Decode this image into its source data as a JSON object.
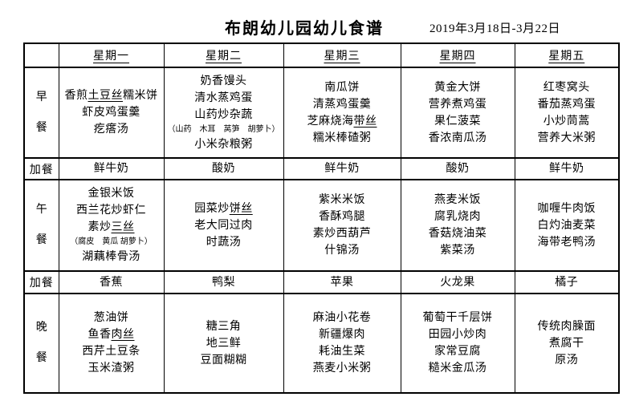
{
  "page": {
    "title": "布朗幼儿园幼儿食谱",
    "date_range": "2019年3月18日-3月22日"
  },
  "table": {
    "corner": "",
    "day_headers": [
      "星期一",
      "星期二",
      "星期三",
      "星期四",
      "星期五"
    ],
    "rows": [
      {
        "label": "早餐",
        "stacked": true,
        "cells": [
          {
            "lines": [
              {
                "text": "香煎土豆丝糯米饼",
                "underline": "土豆丝"
              },
              {
                "text": "虾皮鸡蛋羹"
              },
              {
                "text": "疙瘩汤"
              }
            ]
          },
          {
            "lines": [
              {
                "text": "奶香馒头"
              },
              {
                "text": "清水蒸鸡蛋"
              },
              {
                "text": "山药炒杂蔬"
              },
              {
                "text": "（山药　木耳　莴笋　胡萝卜）",
                "small": true
              },
              {
                "text": "小米杂粮粥"
              }
            ]
          },
          {
            "lines": [
              {
                "text": "南瓜饼"
              },
              {
                "text": "清蒸鸡蛋羹"
              },
              {
                "text": "芝麻烧海带丝",
                "underline": "带丝"
              },
              {
                "text": "糯米棒碴粥"
              }
            ]
          },
          {
            "lines": [
              {
                "text": "黄金大饼"
              },
              {
                "text": "营养煮鸡蛋"
              },
              {
                "text": "果仁菠菜"
              },
              {
                "text": "香浓南瓜汤"
              }
            ]
          },
          {
            "lines": [
              {
                "text": "红枣窝头"
              },
              {
                "text": "番茄蒸鸡蛋"
              },
              {
                "text": "小炒茼蒿"
              },
              {
                "text": "营养大米粥"
              }
            ]
          }
        ]
      },
      {
        "label": "加餐",
        "stacked": false,
        "cells": [
          {
            "lines": [
              {
                "text": "鲜牛奶"
              }
            ]
          },
          {
            "lines": [
              {
                "text": "酸奶"
              }
            ]
          },
          {
            "lines": [
              {
                "text": "鲜牛奶"
              }
            ]
          },
          {
            "lines": [
              {
                "text": "酸奶"
              }
            ]
          },
          {
            "lines": [
              {
                "text": "鲜牛奶"
              }
            ]
          }
        ]
      },
      {
        "label": "午餐",
        "stacked": true,
        "cells": [
          {
            "lines": [
              {
                "text": "金银米饭"
              },
              {
                "text": "西兰花炒虾仁"
              },
              {
                "text": "素炒三丝",
                "underline": "三丝"
              },
              {
                "text": "（腐皮　黄瓜 胡萝卜）",
                "small": true
              },
              {
                "text": "湖藕棒骨汤"
              }
            ]
          },
          {
            "lines": [
              {
                "text": "园菜炒饼丝",
                "underline": "饼丝"
              },
              {
                "text": "老大同过肉"
              },
              {
                "text": "时蔬汤"
              }
            ]
          },
          {
            "lines": [
              {
                "text": "紫米米饭"
              },
              {
                "text": "香酥鸡腿"
              },
              {
                "text": "素炒西葫芦"
              },
              {
                "text": "什锦汤"
              }
            ]
          },
          {
            "lines": [
              {
                "text": "燕麦米饭"
              },
              {
                "text": "腐乳烧肉"
              },
              {
                "text": "香菇烧油菜"
              },
              {
                "text": "紫菜汤"
              }
            ]
          },
          {
            "lines": [
              {
                "text": "咖喱牛肉饭"
              },
              {
                "text": "白灼油麦菜"
              },
              {
                "text": "海带老鸭汤"
              }
            ]
          }
        ]
      },
      {
        "label": "加餐",
        "stacked": false,
        "cells": [
          {
            "lines": [
              {
                "text": "香蕉"
              }
            ]
          },
          {
            "lines": [
              {
                "text": "鸭梨"
              }
            ]
          },
          {
            "lines": [
              {
                "text": "苹果"
              }
            ]
          },
          {
            "lines": [
              {
                "text": "火龙果"
              }
            ]
          },
          {
            "lines": [
              {
                "text": "橘子"
              }
            ]
          }
        ]
      },
      {
        "label": "晚餐",
        "stacked": true,
        "cells": [
          {
            "lines": [
              {
                "text": "葱油饼"
              },
              {
                "text": "鱼香肉丝",
                "underline": "肉丝"
              },
              {
                "text": "西芹土豆条"
              },
              {
                "text": "玉米渣粥"
              }
            ]
          },
          {
            "lines": [
              {
                "text": "糖三角"
              },
              {
                "text": "地三鲜"
              },
              {
                "text": "豆面糊糊"
              }
            ]
          },
          {
            "lines": [
              {
                "text": "麻油小花卷"
              },
              {
                "text": "新疆爆肉"
              },
              {
                "text": "耗油生菜"
              },
              {
                "text": "燕麦小米粥"
              }
            ]
          },
          {
            "lines": [
              {
                "text": "葡萄干千层饼"
              },
              {
                "text": "田园小炒肉"
              },
              {
                "text": "家常豆腐"
              },
              {
                "text": "糙米金瓜汤"
              }
            ]
          },
          {
            "lines": [
              {
                "text": "传统肉臊面"
              },
              {
                "text": "煮腐干"
              },
              {
                "text": "原汤"
              }
            ]
          }
        ]
      }
    ]
  }
}
